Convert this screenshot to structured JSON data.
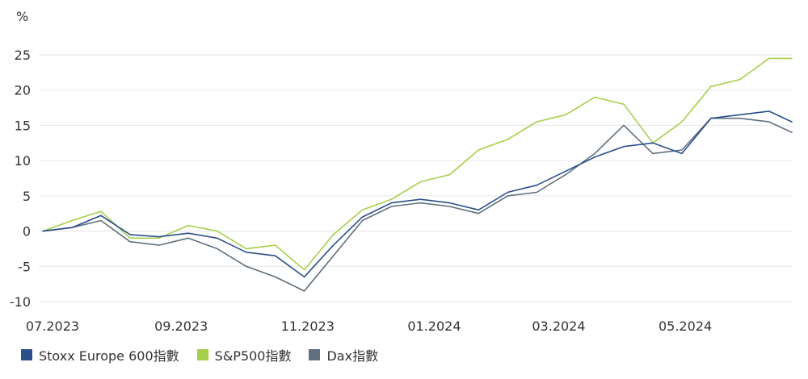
{
  "chart_data": {
    "type": "line",
    "unit_label": "%",
    "ylim": [
      -10,
      27
    ],
    "y_ticks": [
      -10,
      -5,
      0,
      5,
      10,
      15,
      20,
      25
    ],
    "x_tick_labels": [
      "07.2023",
      "09.2023",
      "11.2023",
      "01.2024",
      "03.2024",
      "05.2024"
    ],
    "grid": true,
    "legend_position": "bottom-left",
    "x": [
      "2023-07-03",
      "2023-07-17",
      "2023-07-31",
      "2023-08-14",
      "2023-08-28",
      "2023-09-11",
      "2023-09-25",
      "2023-10-09",
      "2023-10-23",
      "2023-11-06",
      "2023-11-20",
      "2023-12-04",
      "2023-12-18",
      "2024-01-01",
      "2024-01-15",
      "2024-01-29",
      "2024-02-12",
      "2024-02-26",
      "2024-03-11",
      "2024-03-25",
      "2024-04-08",
      "2024-04-22",
      "2024-05-06",
      "2024-05-20",
      "2024-06-03",
      "2024-06-17",
      "2024-06-28"
    ],
    "series": [
      {
        "name": "Stoxx Europe 600指數",
        "color": "#2b4f8c",
        "values": [
          0,
          0.5,
          2.2,
          -0.5,
          -0.8,
          -0.3,
          -1.0,
          -3.0,
          -3.5,
          -6.5,
          -2.0,
          2.0,
          4.0,
          4.5,
          4.0,
          3.0,
          5.5,
          6.5,
          8.5,
          10.5,
          12.0,
          12.5,
          11.0,
          16.0,
          16.5,
          17.0,
          15.5
        ]
      },
      {
        "name": "S&P500指數",
        "color": "#a6cf4a",
        "values": [
          0,
          1.5,
          2.8,
          -1.0,
          -1.0,
          0.8,
          0.0,
          -2.5,
          -2.0,
          -5.5,
          -0.5,
          3.0,
          4.5,
          7.0,
          8.0,
          11.5,
          13.0,
          15.5,
          16.5,
          19.0,
          18.0,
          12.5,
          15.5,
          20.5,
          21.5,
          24.5,
          24.5
        ]
      },
      {
        "name": "Dax指數",
        "color": "#5f6f7f",
        "values": [
          0,
          0.5,
          1.5,
          -1.5,
          -2.0,
          -1.0,
          -2.5,
          -5.0,
          -6.5,
          -8.5,
          -3.5,
          1.5,
          3.5,
          4.0,
          3.5,
          2.5,
          5.0,
          5.5,
          8.0,
          11.0,
          15.0,
          11.0,
          11.5,
          16.0,
          16.0,
          15.5,
          14.0
        ]
      }
    ]
  }
}
